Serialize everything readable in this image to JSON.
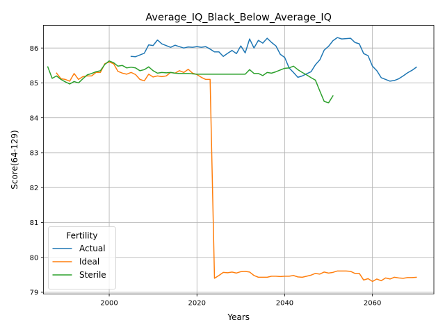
{
  "chart_data": {
    "type": "line",
    "title": "Average_IQ_Black_Below_Average_IQ",
    "xlabel": "Years",
    "ylabel": "Score(64-129)",
    "xlim": [
      1985,
      2074
    ],
    "ylim": [
      78.95,
      86.65
    ],
    "xticks": [
      2000,
      2020,
      2040,
      2060
    ],
    "yticks": [
      79,
      80,
      81,
      82,
      83,
      84,
      85,
      86
    ],
    "grid": true,
    "legend": {
      "title": "Fertility",
      "position": "lower-left"
    },
    "colors": {
      "Actual": "#1f77b4",
      "Ideal": "#ff7f0e",
      "Sterile": "#2ca02c"
    },
    "series": [
      {
        "name": "Actual",
        "x": [
          2005,
          2006,
          2007,
          2008,
          2009,
          2010,
          2011,
          2012,
          2013,
          2014,
          2015,
          2016,
          2017,
          2018,
          2019,
          2020,
          2021,
          2022,
          2023,
          2024,
          2025,
          2026,
          2027,
          2028,
          2029,
          2030,
          2031,
          2032,
          2033,
          2034,
          2035,
          2036,
          2037,
          2038,
          2039,
          2040,
          2041,
          2042,
          2043,
          2044,
          2045,
          2046,
          2047,
          2048,
          2049,
          2050,
          2051,
          2052,
          2053,
          2054,
          2055,
          2056,
          2057,
          2058,
          2059,
          2060,
          2061,
          2062,
          2063,
          2064,
          2065,
          2066,
          2067,
          2068,
          2069,
          2070
        ],
        "values": [
          85.76,
          85.75,
          85.8,
          85.85,
          86.09,
          86.07,
          86.23,
          86.12,
          86.07,
          86.02,
          86.08,
          86.04,
          86.0,
          86.03,
          86.02,
          86.04,
          86.02,
          86.04,
          85.97,
          85.89,
          85.89,
          85.76,
          85.85,
          85.93,
          85.84,
          86.06,
          85.86,
          86.26,
          86.0,
          86.22,
          86.14,
          86.28,
          86.16,
          86.06,
          85.82,
          85.73,
          85.43,
          85.3,
          85.16,
          85.2,
          85.26,
          85.32,
          85.52,
          85.66,
          85.94,
          86.05,
          86.21,
          86.3,
          86.26,
          86.27,
          86.28,
          86.16,
          86.12,
          85.84,
          85.78,
          85.48,
          85.35,
          85.15,
          85.1,
          85.05,
          85.07,
          85.12,
          85.2,
          85.29,
          85.36,
          85.45
        ]
      },
      {
        "name": "Ideal",
        "x": [
          1988,
          1989,
          1990,
          1991,
          1992,
          1993,
          1994,
          1995,
          1996,
          1997,
          1998,
          1999,
          2000,
          2001,
          2002,
          2003,
          2004,
          2005,
          2006,
          2007,
          2008,
          2009,
          2010,
          2011,
          2012,
          2013,
          2014,
          2015,
          2016,
          2017,
          2018,
          2019,
          2020,
          2021,
          2022,
          2023,
          2024,
          2025,
          2026,
          2027,
          2028,
          2029,
          2030,
          2031,
          2032,
          2033,
          2034,
          2035,
          2036,
          2037,
          2038,
          2039,
          2040,
          2041,
          2042,
          2043,
          2044,
          2045,
          2046,
          2047,
          2048,
          2049,
          2050,
          2051,
          2052,
          2053,
          2054,
          2055,
          2056,
          2057,
          2058,
          2059,
          2060,
          2061,
          2062,
          2063,
          2064,
          2065,
          2066,
          2067,
          2068,
          2069,
          2070
        ],
        "values": [
          85.28,
          85.12,
          85.1,
          85.05,
          85.27,
          85.1,
          85.18,
          85.2,
          85.2,
          85.3,
          85.3,
          85.55,
          85.6,
          85.55,
          85.33,
          85.28,
          85.25,
          85.3,
          85.24,
          85.1,
          85.06,
          85.25,
          85.17,
          85.2,
          85.18,
          85.2,
          85.3,
          85.28,
          85.35,
          85.3,
          85.39,
          85.28,
          85.24,
          85.16,
          85.1,
          85.1,
          79.4,
          79.48,
          79.57,
          79.56,
          79.58,
          79.55,
          79.59,
          79.6,
          79.58,
          79.48,
          79.43,
          79.43,
          79.43,
          79.46,
          79.46,
          79.45,
          79.46,
          79.46,
          79.48,
          79.44,
          79.43,
          79.46,
          79.49,
          79.54,
          79.52,
          79.58,
          79.55,
          79.57,
          79.61,
          79.61,
          79.61,
          79.6,
          79.54,
          79.54,
          79.35,
          79.39,
          79.31,
          79.38,
          79.33,
          79.41,
          79.38,
          79.43,
          79.41,
          79.4,
          79.42,
          79.42,
          79.43
        ]
      },
      {
        "name": "Sterile",
        "x": [
          1986,
          1987,
          1988,
          1989,
          1990,
          1991,
          1992,
          1993,
          1994,
          1995,
          1996,
          1997,
          1998,
          1999,
          2000,
          2001,
          2002,
          2003,
          2004,
          2005,
          2006,
          2007,
          2008,
          2009,
          2010,
          2011,
          2012,
          2013,
          2014,
          2015,
          2016,
          2017,
          2018,
          2019,
          2020,
          2021,
          2022,
          2023,
          2024,
          2025,
          2026,
          2027,
          2028,
          2029,
          2030,
          2031,
          2032,
          2033,
          2034,
          2035,
          2036,
          2037,
          2038,
          2039,
          2040,
          2041,
          2042,
          2043,
          2044,
          2045,
          2046,
          2047,
          2048,
          2049,
          2050,
          2051
        ],
        "values": [
          85.46,
          85.13,
          85.2,
          85.1,
          85.03,
          84.97,
          85.04,
          85.0,
          85.12,
          85.23,
          85.27,
          85.32,
          85.35,
          85.53,
          85.63,
          85.58,
          85.48,
          85.5,
          85.43,
          85.45,
          85.43,
          85.35,
          85.38,
          85.46,
          85.35,
          85.28,
          85.3,
          85.29,
          85.3,
          85.28,
          85.27,
          85.27,
          85.27,
          85.26,
          85.25,
          85.25,
          85.25,
          85.25,
          85.25,
          85.25,
          85.25,
          85.25,
          85.25,
          85.25,
          85.25,
          85.25,
          85.38,
          85.27,
          85.27,
          85.21,
          85.3,
          85.28,
          85.32,
          85.37,
          85.42,
          85.43,
          85.48,
          85.38,
          85.3,
          85.23,
          85.15,
          85.08,
          84.77,
          84.47,
          84.43,
          84.63
        ]
      }
    ]
  }
}
